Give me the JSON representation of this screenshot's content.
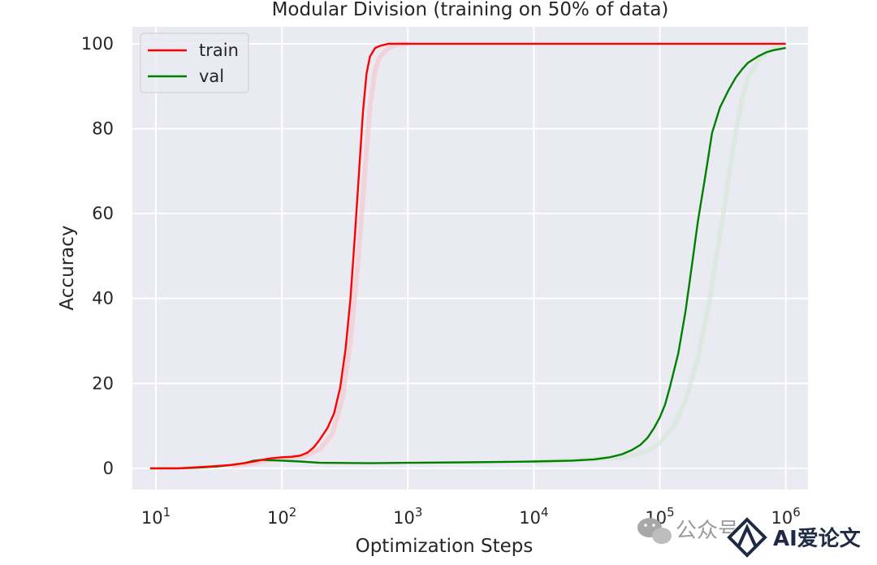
{
  "chart_data": {
    "type": "line",
    "title": "Modular Division (training on 50% of data)",
    "xlabel": "Optimization Steps",
    "ylabel": "Accuracy",
    "x_scale": "log",
    "xlim": [
      6.5,
      1500000
    ],
    "ylim": [
      -5,
      104
    ],
    "grid": true,
    "legend_position": "top-left",
    "x_ticks": [
      {
        "value": 10,
        "base": "10",
        "exp": "1"
      },
      {
        "value": 100,
        "base": "10",
        "exp": "2"
      },
      {
        "value": 1000,
        "base": "10",
        "exp": "3"
      },
      {
        "value": 10000,
        "base": "10",
        "exp": "4"
      },
      {
        "value": 100000,
        "base": "10",
        "exp": "5"
      },
      {
        "value": 1000000,
        "base": "10",
        "exp": "6"
      }
    ],
    "y_ticks": [
      0,
      20,
      40,
      60,
      80,
      100
    ],
    "series": [
      {
        "name": "train",
        "color": "#ff0000",
        "x": [
          9,
          15,
          20,
          30,
          40,
          50,
          60,
          70,
          80,
          100,
          120,
          140,
          160,
          180,
          200,
          230,
          260,
          290,
          320,
          350,
          380,
          410,
          440,
          470,
          500,
          550,
          600,
          700,
          800,
          900,
          1000,
          1200,
          1500,
          2000,
          3000,
          5000,
          10000,
          30000,
          100000,
          300000,
          1000000
        ],
        "y": [
          0,
          0,
          0.2,
          0.5,
          0.8,
          1.2,
          1.6,
          2.0,
          2.3,
          2.6,
          2.7,
          3.0,
          3.7,
          5.0,
          6.8,
          9.5,
          13,
          19,
          28,
          40,
          55,
          70,
          84,
          93,
          97,
          99,
          99.5,
          100,
          100,
          100,
          100,
          100,
          100,
          100,
          100,
          100,
          100,
          100,
          100,
          100,
          100
        ]
      },
      {
        "name": "val",
        "color": "#008000",
        "x": [
          9,
          15,
          20,
          30,
          40,
          50,
          60,
          70,
          80,
          100,
          120,
          140,
          200,
          500,
          1000,
          3000,
          10000,
          20000,
          30000,
          40000,
          50000,
          60000,
          70000,
          80000,
          90000,
          100000,
          110000,
          120000,
          140000,
          160000,
          180000,
          200000,
          230000,
          260000,
          300000,
          350000,
          400000,
          450000,
          500000,
          600000,
          700000,
          800000,
          1000000
        ],
        "y": [
          0,
          0,
          0.1,
          0.4,
          0.8,
          1.2,
          1.8,
          2.0,
          1.9,
          1.8,
          1.7,
          1.6,
          1.3,
          1.2,
          1.3,
          1.4,
          1.6,
          1.8,
          2.1,
          2.6,
          3.3,
          4.3,
          5.5,
          7.2,
          9.5,
          12,
          15,
          19,
          27,
          37,
          48,
          58,
          69,
          79,
          85,
          89,
          92,
          94,
          95.5,
          97,
          98,
          98.5,
          99
        ]
      }
    ],
    "shadow_series": [
      {
        "color": "#f5c4c8",
        "x": [
          40,
          60,
          80,
          100,
          150,
          200,
          250,
          300,
          350,
          400,
          450,
          500,
          550,
          600,
          700,
          800,
          1000
        ],
        "y": [
          0.5,
          1.2,
          2.0,
          2.3,
          2.8,
          4.5,
          8,
          16,
          30,
          48,
          68,
          85,
          94,
          97,
          99,
          99.8,
          100
        ]
      },
      {
        "color": "#d3e6d3",
        "x": [
          10000,
          50000,
          80000,
          100000,
          130000,
          160000,
          200000,
          250000,
          300000,
          350000,
          400000,
          450000,
          500000,
          600000,
          700000,
          800000,
          1000000
        ],
        "y": [
          1.5,
          2.5,
          4,
          6,
          10,
          16,
          26,
          40,
          55,
          68,
          79,
          87,
          92,
          96,
          98,
          99,
          99.5
        ]
      }
    ]
  },
  "watermark": {
    "text_faint": "公众号",
    "text_brand": "AI爱论文"
  }
}
